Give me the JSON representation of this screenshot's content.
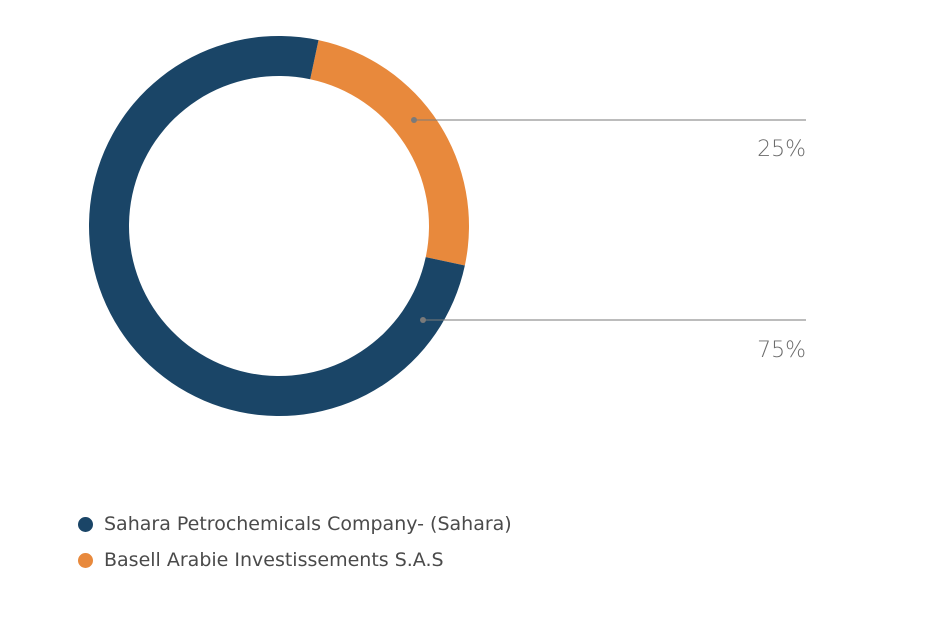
{
  "chart_data": {
    "type": "pie",
    "donut": true,
    "series": [
      {
        "name": "Sahara Petrochemicals Company- (Sahara)",
        "value": 75,
        "label": "75%",
        "color": "#1a4567"
      },
      {
        "name": "Basell Arabie Investissements S.A.S",
        "value": 25,
        "label": "25%",
        "color": "#e8893c"
      }
    ],
    "legend_position": "bottom-left"
  }
}
